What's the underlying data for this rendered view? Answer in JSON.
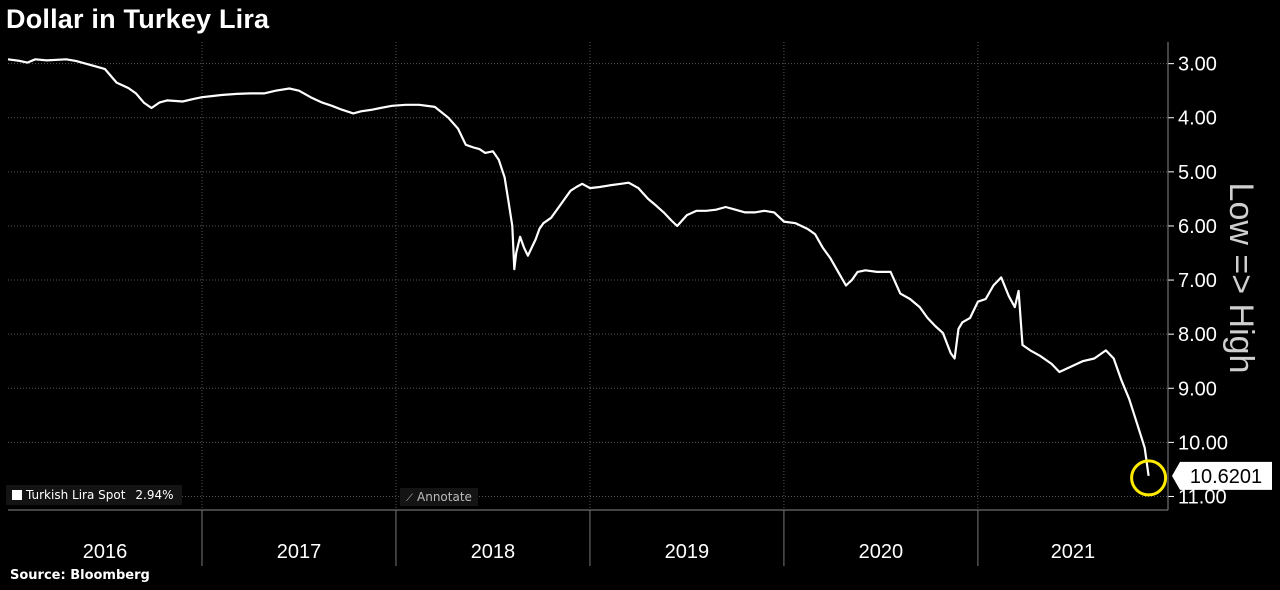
{
  "title": "Dollar in Turkey Lira",
  "source": "Source: Bloomberg",
  "legend": {
    "label": "Turkish Lira Spot",
    "change": "2.94%"
  },
  "annotate_label": "Annotate",
  "axis_side_label": "Low => High",
  "last_value_label": "10.6201",
  "colors": {
    "background": "#000000",
    "line": "#ffffff",
    "grid": "#555555",
    "highlight": "#ffeb00"
  },
  "chart_data": {
    "type": "line",
    "title": "Dollar in Turkey Lira",
    "ylabel": "",
    "y_inverted": true,
    "ylim": [
      2.6,
      11.25
    ],
    "xlim": [
      2016.0,
      2021.98
    ],
    "y_ticks": [
      3.0,
      4.0,
      5.0,
      6.0,
      7.0,
      8.0,
      9.0,
      10.0,
      11.0
    ],
    "y_tick_labels": [
      "3.00",
      "4.00",
      "5.00",
      "6.00",
      "7.00",
      "8.00",
      "9.00",
      "10.00",
      "11.00"
    ],
    "x_labels": [
      {
        "label": "2016",
        "year": 2016
      },
      {
        "label": "2017",
        "year": 2017
      },
      {
        "label": "2018",
        "year": 2018
      },
      {
        "label": "2019",
        "year": 2019
      },
      {
        "label": "2020",
        "year": 2020
      },
      {
        "label": "2021",
        "year": 2021
      }
    ],
    "grid": true,
    "legend_position": "bottom-left",
    "series": [
      {
        "name": "Turkish Lira Spot",
        "points": [
          [
            2016.0,
            2.92
          ],
          [
            2016.06,
            2.95
          ],
          [
            2016.1,
            2.98
          ],
          [
            2016.14,
            2.92
          ],
          [
            2016.2,
            2.94
          ],
          [
            2016.3,
            2.92
          ],
          [
            2016.35,
            2.95
          ],
          [
            2016.45,
            3.05
          ],
          [
            2016.5,
            3.1
          ],
          [
            2016.56,
            3.35
          ],
          [
            2016.62,
            3.45
          ],
          [
            2016.66,
            3.55
          ],
          [
            2016.7,
            3.72
          ],
          [
            2016.74,
            3.82
          ],
          [
            2016.78,
            3.72
          ],
          [
            2016.82,
            3.68
          ],
          [
            2016.9,
            3.7
          ],
          [
            2016.96,
            3.65
          ],
          [
            2017.0,
            3.62
          ],
          [
            2017.05,
            3.6
          ],
          [
            2017.1,
            3.58
          ],
          [
            2017.18,
            3.56
          ],
          [
            2017.25,
            3.55
          ],
          [
            2017.32,
            3.55
          ],
          [
            2017.38,
            3.5
          ],
          [
            2017.45,
            3.46
          ],
          [
            2017.5,
            3.5
          ],
          [
            2017.56,
            3.62
          ],
          [
            2017.62,
            3.72
          ],
          [
            2017.67,
            3.78
          ],
          [
            2017.72,
            3.85
          ],
          [
            2017.78,
            3.92
          ],
          [
            2017.82,
            3.88
          ],
          [
            2017.88,
            3.85
          ],
          [
            2017.92,
            3.82
          ],
          [
            2017.98,
            3.78
          ],
          [
            2018.05,
            3.76
          ],
          [
            2018.12,
            3.76
          ],
          [
            2018.2,
            3.8
          ],
          [
            2018.27,
            4.0
          ],
          [
            2018.32,
            4.2
          ],
          [
            2018.36,
            4.5
          ],
          [
            2018.4,
            4.55
          ],
          [
            2018.43,
            4.58
          ],
          [
            2018.46,
            4.65
          ],
          [
            2018.5,
            4.62
          ],
          [
            2018.53,
            4.78
          ],
          [
            2018.56,
            5.1
          ],
          [
            2018.58,
            5.55
          ],
          [
            2018.6,
            6.0
          ],
          [
            2018.61,
            6.8
          ],
          [
            2018.62,
            6.5
          ],
          [
            2018.64,
            6.2
          ],
          [
            2018.66,
            6.4
          ],
          [
            2018.68,
            6.55
          ],
          [
            2018.7,
            6.4
          ],
          [
            2018.72,
            6.25
          ],
          [
            2018.74,
            6.05
          ],
          [
            2018.76,
            5.95
          ],
          [
            2018.8,
            5.85
          ],
          [
            2018.84,
            5.65
          ],
          [
            2018.87,
            5.5
          ],
          [
            2018.9,
            5.35
          ],
          [
            2018.93,
            5.28
          ],
          [
            2018.96,
            5.22
          ],
          [
            2019.0,
            5.3
          ],
          [
            2019.05,
            5.28
          ],
          [
            2019.1,
            5.25
          ],
          [
            2019.16,
            5.22
          ],
          [
            2019.2,
            5.2
          ],
          [
            2019.25,
            5.3
          ],
          [
            2019.3,
            5.5
          ],
          [
            2019.34,
            5.62
          ],
          [
            2019.38,
            5.75
          ],
          [
            2019.42,
            5.9
          ],
          [
            2019.45,
            6.0
          ],
          [
            2019.5,
            5.8
          ],
          [
            2019.55,
            5.72
          ],
          [
            2019.6,
            5.72
          ],
          [
            2019.65,
            5.7
          ],
          [
            2019.7,
            5.65
          ],
          [
            2019.75,
            5.7
          ],
          [
            2019.8,
            5.75
          ],
          [
            2019.85,
            5.75
          ],
          [
            2019.9,
            5.72
          ],
          [
            2019.95,
            5.75
          ],
          [
            2020.0,
            5.92
          ],
          [
            2020.06,
            5.95
          ],
          [
            2020.12,
            6.05
          ],
          [
            2020.16,
            6.15
          ],
          [
            2020.2,
            6.4
          ],
          [
            2020.24,
            6.6
          ],
          [
            2020.28,
            6.85
          ],
          [
            2020.32,
            7.1
          ],
          [
            2020.35,
            7.0
          ],
          [
            2020.38,
            6.85
          ],
          [
            2020.42,
            6.82
          ],
          [
            2020.48,
            6.85
          ],
          [
            2020.55,
            6.85
          ],
          [
            2020.6,
            7.25
          ],
          [
            2020.65,
            7.35
          ],
          [
            2020.7,
            7.5
          ],
          [
            2020.74,
            7.7
          ],
          [
            2020.78,
            7.85
          ],
          [
            2020.82,
            7.98
          ],
          [
            2020.86,
            8.35
          ],
          [
            2020.88,
            8.45
          ],
          [
            2020.9,
            7.9
          ],
          [
            2020.92,
            7.78
          ],
          [
            2020.96,
            7.7
          ],
          [
            2021.0,
            7.4
          ],
          [
            2021.04,
            7.35
          ],
          [
            2021.08,
            7.1
          ],
          [
            2021.12,
            6.95
          ],
          [
            2021.16,
            7.3
          ],
          [
            2021.19,
            7.5
          ],
          [
            2021.21,
            7.2
          ],
          [
            2021.23,
            8.2
          ],
          [
            2021.27,
            8.3
          ],
          [
            2021.32,
            8.4
          ],
          [
            2021.38,
            8.55
          ],
          [
            2021.42,
            8.7
          ],
          [
            2021.48,
            8.6
          ],
          [
            2021.54,
            8.5
          ],
          [
            2021.6,
            8.45
          ],
          [
            2021.66,
            8.3
          ],
          [
            2021.7,
            8.45
          ],
          [
            2021.74,
            8.85
          ],
          [
            2021.78,
            9.2
          ],
          [
            2021.82,
            9.65
          ],
          [
            2021.86,
            10.1
          ],
          [
            2021.88,
            10.62
          ]
        ]
      }
    ]
  }
}
